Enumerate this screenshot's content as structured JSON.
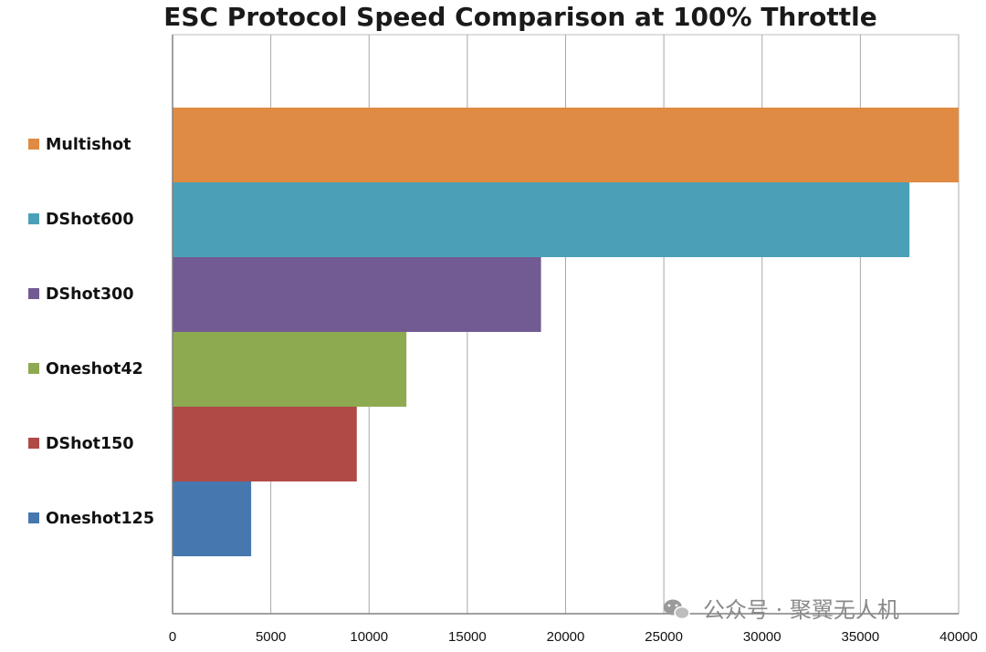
{
  "chart_data": {
    "type": "bar",
    "orientation": "horizontal",
    "title": "ESC Protocol Speed Comparison at 100% Throttle",
    "xlabel": "",
    "ylabel": "",
    "categories": [
      "Multishot",
      "DShot600",
      "DShot300",
      "Oneshot42",
      "DShot150",
      "Oneshot125"
    ],
    "values": [
      40000,
      37500,
      18750,
      11900,
      9375,
      4000
    ],
    "colors": [
      "#E08B43",
      "#4BA0B8",
      "#725A93",
      "#8DAA51",
      "#B04A46",
      "#4677AF"
    ],
    "xlim": [
      0,
      40000
    ],
    "xticks": [
      "0",
      "5000",
      "10000",
      "15000",
      "20000",
      "25000",
      "30000",
      "35000",
      "40000"
    ],
    "grid": "vertical",
    "legend": "left"
  },
  "watermark": {
    "text": "公众号 · 聚翼无人机",
    "icon": "wechat-icon"
  }
}
